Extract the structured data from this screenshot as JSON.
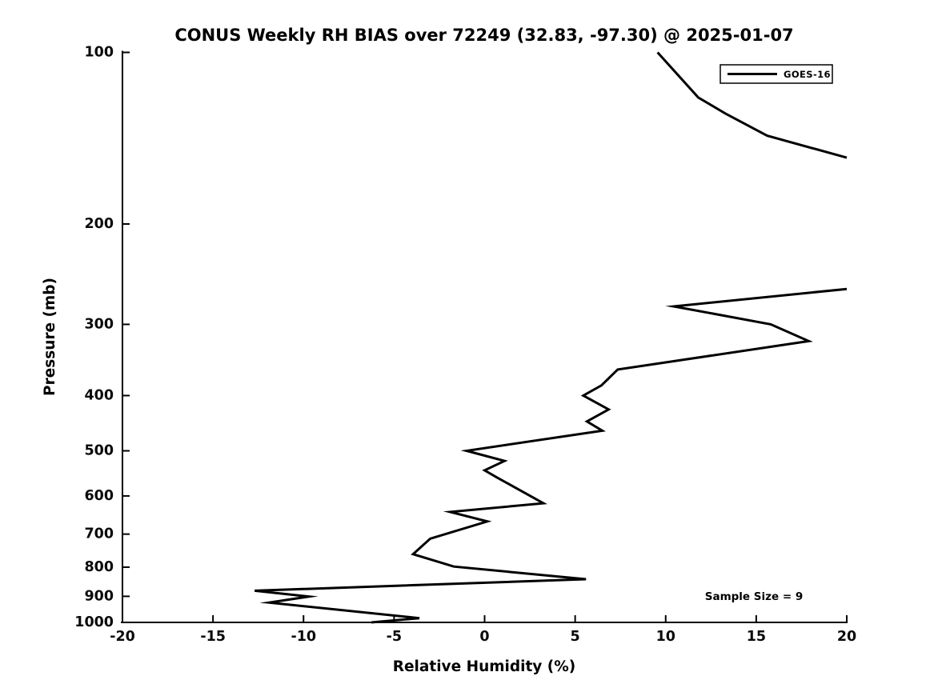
{
  "figure": {
    "background_color": "#ffffff",
    "foreground_color": "#000000"
  },
  "chart_data": {
    "type": "line",
    "title": "CONUS Weekly RH BIAS over 72249 (32.83, -97.30) @ 2025-01-07",
    "xlabel": "Relative Humidity (%)",
    "ylabel": "Pressure (mb)",
    "xlim": [
      -20,
      20
    ],
    "ylim": [
      1000,
      100
    ],
    "yscale": "log",
    "y_axis_inverted": true,
    "grid": false,
    "xticks": [
      -20,
      -15,
      -10,
      -5,
      0,
      5,
      10,
      15,
      20
    ],
    "yticks": [
      100,
      200,
      300,
      400,
      500,
      600,
      700,
      800,
      900,
      1000
    ],
    "legend": {
      "position": "top-right",
      "entries": [
        {
          "label": "GOES-16",
          "color": "#000000",
          "line_style": "solid"
        }
      ]
    },
    "annotation": "Sample Size = 9",
    "series": [
      {
        "name": "GOES-16",
        "color": "#000000",
        "line_width": 3,
        "segments": [
          [
            [
              9.55,
              100
            ],
            [
              11.8,
              120
            ],
            [
              13.3,
              128
            ],
            [
              15.6,
              140
            ],
            [
              20.0,
              153
            ]
          ],
          [
            [
              20.0,
              260
            ],
            [
              10.45,
              279
            ],
            [
              15.8,
              300
            ],
            [
              17.9,
              321
            ],
            [
              7.35,
              360
            ],
            [
              6.45,
              384
            ],
            [
              5.45,
              400
            ],
            [
              6.85,
              423
            ],
            [
              5.65,
              444
            ],
            [
              6.5,
              461
            ],
            [
              -1.0,
              500
            ],
            [
              1.1,
              521
            ],
            [
              0.0,
              541
            ],
            [
              0.65,
              556
            ],
            [
              3.25,
              618
            ],
            [
              -1.9,
              640
            ],
            [
              0.15,
              665
            ],
            [
              -3.0,
              713
            ],
            [
              -3.95,
              759
            ],
            [
              -1.7,
              798
            ],
            [
              5.6,
              840
            ],
            [
              -12.7,
              880
            ],
            [
              -9.7,
              901
            ],
            [
              -11.9,
              923
            ],
            [
              -3.6,
              983
            ],
            [
              -6.25,
              1000
            ]
          ]
        ]
      }
    ]
  }
}
